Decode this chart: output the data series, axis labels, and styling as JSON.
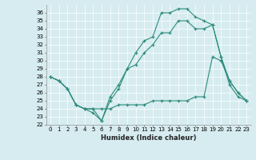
{
  "xlabel": "Humidex (Indice chaleur)",
  "xlim": [
    -0.5,
    23.5
  ],
  "ylim": [
    22,
    37
  ],
  "yticks": [
    22,
    23,
    24,
    25,
    26,
    27,
    28,
    29,
    30,
    31,
    32,
    33,
    34,
    35,
    36
  ],
  "xticks": [
    0,
    1,
    2,
    3,
    4,
    5,
    6,
    7,
    8,
    9,
    10,
    11,
    12,
    13,
    14,
    15,
    16,
    17,
    18,
    19,
    20,
    21,
    22,
    23
  ],
  "background_color": "#d6ecf0",
  "grid_color": "#ffffff",
  "line_color": "#2e8b7a",
  "series": [
    {
      "x": [
        0,
        1,
        2,
        3,
        4,
        5,
        6,
        7,
        8,
        9,
        10,
        11,
        12,
        13,
        14,
        15,
        16,
        17,
        18,
        19,
        20,
        21,
        22,
        23
      ],
      "y": [
        28,
        27.5,
        26.5,
        24.5,
        24,
        23.5,
        22.5,
        25,
        26.5,
        29,
        31,
        32.5,
        33,
        36,
        36,
        36.5,
        36.5,
        35.5,
        35,
        34.5,
        30.5,
        27.5,
        26,
        25
      ]
    },
    {
      "x": [
        0,
        1,
        2,
        3,
        4,
        5,
        6,
        7,
        8,
        9,
        10,
        11,
        12,
        13,
        14,
        15,
        16,
        17,
        18,
        19,
        20,
        21,
        22,
        23
      ],
      "y": [
        28,
        27.5,
        26.5,
        24.5,
        24,
        24,
        22.5,
        25.5,
        27,
        29,
        29.5,
        31,
        32,
        33.5,
        33.5,
        35,
        35,
        34,
        34,
        34.5,
        30.5,
        27,
        25.5,
        25
      ]
    },
    {
      "x": [
        0,
        1,
        2,
        3,
        4,
        5,
        6,
        7,
        8,
        9,
        10,
        11,
        12,
        13,
        14,
        15,
        16,
        17,
        18,
        19,
        20,
        21,
        22,
        23
      ],
      "y": [
        28,
        27.5,
        26.5,
        24.5,
        24,
        24,
        24,
        24,
        24.5,
        24.5,
        24.5,
        24.5,
        25,
        25,
        25,
        25,
        25,
        25.5,
        25.5,
        30.5,
        30,
        27.5,
        26,
        25
      ]
    }
  ]
}
